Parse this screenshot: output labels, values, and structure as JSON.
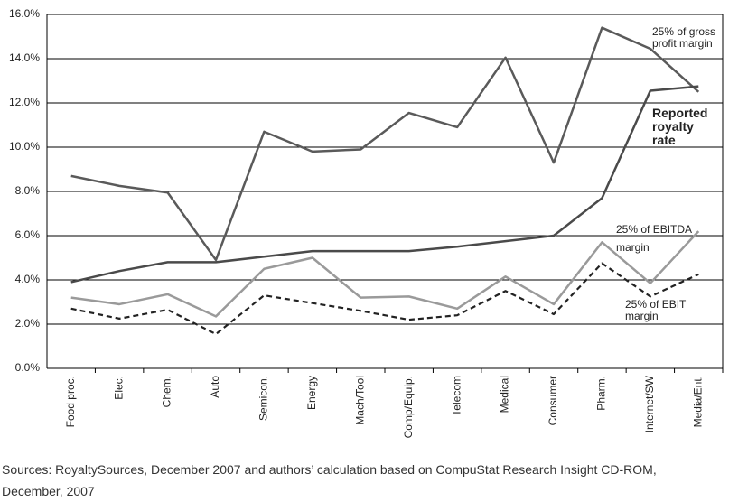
{
  "chart_data": {
    "type": "line",
    "categories": [
      "Food proc.",
      "Elec.",
      "Chem.",
      "Auto",
      "Semicon.",
      "Energy",
      "Mach/Tool",
      "Comp/Equip.",
      "Telecom",
      "Medical",
      "Consumer",
      "Pharm.",
      "Internet/SW",
      "Media/Ent."
    ],
    "series": [
      {
        "name": "25% of gross profit margin",
        "color": "#5a5a5a",
        "values": [
          8.7,
          8.25,
          7.95,
          4.9,
          10.7,
          9.8,
          9.9,
          11.55,
          10.9,
          14.05,
          9.3,
          15.4,
          14.45,
          12.5
        ]
      },
      {
        "name": "Reported royalty rate",
        "color": "#4a4a4a",
        "values": [
          3.9,
          4.4,
          4.8,
          4.8,
          5.05,
          5.3,
          5.3,
          5.3,
          5.5,
          5.75,
          6.0,
          7.7,
          12.55,
          12.75
        ]
      },
      {
        "name": "25% of EBITDA margin",
        "color": "#9a9a9a",
        "values": [
          3.2,
          2.9,
          3.35,
          2.35,
          4.5,
          5.0,
          3.2,
          3.25,
          2.7,
          4.15,
          2.9,
          5.7,
          3.85,
          6.2
        ]
      },
      {
        "name": "25% of EBIT margin",
        "color": "#222222",
        "dashed": true,
        "values": [
          2.7,
          2.25,
          2.65,
          1.55,
          3.3,
          2.95,
          2.6,
          2.2,
          2.4,
          3.5,
          2.45,
          4.75,
          3.25,
          4.25
        ]
      }
    ],
    "ylim": [
      0,
      16
    ],
    "yticks": [
      {
        "value": 0,
        "label": "0.0%"
      },
      {
        "value": 2,
        "label": "2.0%"
      },
      {
        "value": 4,
        "label": "4.0%"
      },
      {
        "value": 6,
        "label": "6.0%"
      },
      {
        "value": 8,
        "label": "8.0%"
      },
      {
        "value": 10,
        "label": "10.0%"
      },
      {
        "value": 12,
        "label": "12.0%"
      },
      {
        "value": 14,
        "label": "14.0%"
      },
      {
        "value": 16,
        "label": "16.0%"
      }
    ],
    "grid": true,
    "source": "Sources: RoyaltySources, December 2007 and authors’ calculation based on CompuStat Research Insight CD-ROM, December, 2007"
  }
}
